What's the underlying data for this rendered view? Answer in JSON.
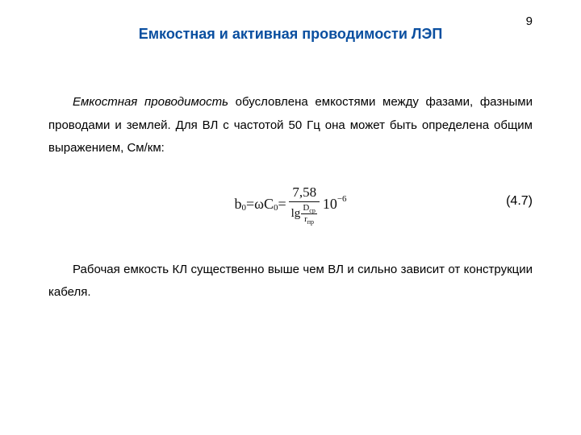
{
  "page_number": "9",
  "title": "Емкостная и активная проводимости ЛЭП",
  "para1_italic": "Емкостная проводимость",
  "para1_rest": " обусловлена емкостями между фазами, фазными проводами и землей. Для ВЛ с частотой 50 Гц она может быть определена общим выражением, См/км:",
  "formula": {
    "b": "b",
    "b_sub": "0",
    "eq": " = ",
    "omega": "ω",
    "C": "C",
    "C_sub": "0",
    "eq2": " = ",
    "numerator": "7,58",
    "lg": "lg ",
    "D": "D",
    "D_sub": "ср",
    "r": "r",
    "r_sub": "пр",
    "ten": "10",
    "exp": "−6"
  },
  "eq_number": "(4.7)",
  "para2": "Рабочая емкость КЛ существенно выше чем ВЛ и сильно зависит от конструкции кабеля.",
  "colors": {
    "title_color": "#0a4fa0",
    "text_color": "#000000",
    "background": "#ffffff"
  },
  "typography": {
    "body_font": "Arial, sans-serif",
    "formula_font": "Georgia, Times New Roman, serif",
    "title_size": 18,
    "body_size": 15,
    "formula_size": 18
  }
}
